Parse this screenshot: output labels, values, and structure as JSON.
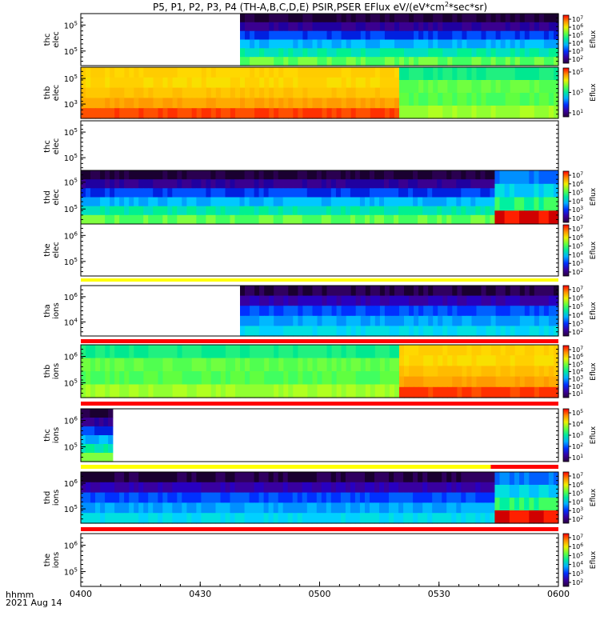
{
  "title": "P5, P1, P2, P3, P4 (TH-A,B,C,D,E) PSIR,PSER EFlux eV/(eV*cm",
  "title_sup": "2",
  "title_tail": "*sec*sr)",
  "x_axis": {
    "prefix": "hhmm",
    "date": "2021 Aug 14",
    "ticks": [
      "0400",
      "0430",
      "0500",
      "0530",
      "0600"
    ]
  },
  "colorbar_label": "Eflux",
  "chart_data": {
    "type": "heatmap",
    "x_range_minutes": [
      0,
      120
    ],
    "x_tick_labels": [
      "0400",
      "0430",
      "0500",
      "0530",
      "0600"
    ],
    "y_scale": "log",
    "panels": [
      {
        "probe": "thc",
        "species": "elec",
        "y_tick_labels": [
          "10^5",
          "10^5"
        ],
        "colorbar_exp": [
          7,
          6,
          5,
          4,
          3,
          2
        ],
        "band": null,
        "regions": [
          {
            "x": [
              0,
              40
            ],
            "kind": "empty"
          },
          {
            "x": [
              40,
              120
            ],
            "kind": "spectrum"
          }
        ]
      },
      {
        "probe": "thb",
        "species": "elec",
        "y_tick_labels": [
          "10^5",
          "10^3"
        ],
        "colorbar_exp": [
          5,
          3,
          1
        ],
        "band": null,
        "regions": [
          {
            "x": [
              0,
              80
            ],
            "kind": "high-flux"
          },
          {
            "x": [
              80,
              120
            ],
            "kind": "medium-flux"
          }
        ]
      },
      {
        "probe": "thc",
        "species": "elec",
        "y_tick_labels": [
          "10^5",
          "10^5"
        ],
        "colorbar_exp": [],
        "band": null,
        "regions": [
          {
            "x": [
              0,
              120
            ],
            "kind": "empty"
          }
        ]
      },
      {
        "probe": "thd",
        "species": "elec",
        "y_tick_labels": [
          "10^5",
          "10^5"
        ],
        "colorbar_exp": [
          7,
          6,
          5,
          4,
          3,
          2
        ],
        "band": null,
        "regions": [
          {
            "x": [
              0,
              104
            ],
            "kind": "spectrum"
          },
          {
            "x": [
              104,
              120
            ],
            "kind": "blocky"
          }
        ]
      },
      {
        "probe": "the",
        "species": "elec",
        "y_tick_labels": [
          "10^6",
          "10^5"
        ],
        "colorbar_exp": [
          7,
          6,
          5,
          4,
          3,
          2
        ],
        "band": "#ffff00",
        "regions": [
          {
            "x": [
              0,
              120
            ],
            "kind": "empty"
          }
        ]
      },
      {
        "probe": "tha",
        "species": "ions",
        "y_tick_labels": [
          "10^6",
          "10^4"
        ],
        "colorbar_exp": [
          7,
          6,
          5,
          4,
          3,
          2
        ],
        "band": "#ff0000",
        "regions": [
          {
            "x": [
              0,
              40
            ],
            "kind": "empty"
          },
          {
            "x": [
              40,
              120
            ],
            "kind": "ion-spectrum"
          }
        ]
      },
      {
        "probe": "thb",
        "species": "ions",
        "y_tick_labels": [
          "10^6",
          "10^5"
        ],
        "colorbar_exp": [
          7,
          6,
          5,
          4,
          3,
          2,
          1
        ],
        "band": "#ff0000",
        "regions": [
          {
            "x": [
              0,
              80
            ],
            "kind": "medium-flux"
          },
          {
            "x": [
              80,
              120
            ],
            "kind": "high-flux"
          }
        ]
      },
      {
        "probe": "thc",
        "species": "ions",
        "y_tick_labels": [
          "10^6",
          "10^5"
        ],
        "colorbar_exp": [
          5,
          4,
          3,
          2,
          1
        ],
        "band": "split",
        "regions": [
          {
            "x": [
              0,
              8
            ],
            "kind": "spectrum"
          },
          {
            "x": [
              8,
              120
            ],
            "kind": "empty"
          }
        ]
      },
      {
        "probe": "thd",
        "species": "ions",
        "y_tick_labels": [
          "10^6",
          "10^5"
        ],
        "colorbar_exp": [
          7,
          6,
          5,
          4,
          3,
          2
        ],
        "band": "#ff0000",
        "regions": [
          {
            "x": [
              0,
              104
            ],
            "kind": "ion-spectrum"
          },
          {
            "x": [
              104,
              120
            ],
            "kind": "blocky"
          }
        ]
      },
      {
        "probe": "the",
        "species": "ions",
        "y_tick_labels": [
          "10^6",
          "10^5"
        ],
        "colorbar_exp": [
          7,
          6,
          5,
          4,
          3,
          2
        ],
        "band": null,
        "regions": [
          {
            "x": [
              0,
              120
            ],
            "kind": "empty"
          }
        ]
      }
    ]
  }
}
